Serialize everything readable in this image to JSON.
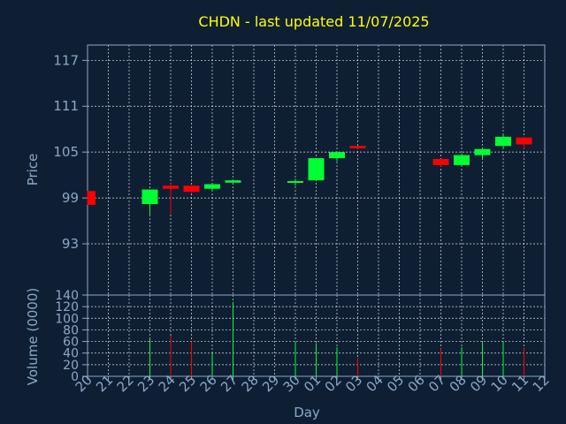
{
  "chart_data": {
    "type": "candlestick",
    "title": "CHDN - last updated 11/07/2025",
    "xlabel": "Day",
    "ylabel_price": "Price",
    "ylabel_volume": "Volume (0000)",
    "price_ticks": [
      93,
      99,
      105,
      111,
      117
    ],
    "price_ylim": [
      86.3,
      119.0
    ],
    "volume_ticks": [
      0,
      20,
      40,
      60,
      80,
      100,
      120,
      140
    ],
    "volume_ylim": [
      0,
      140
    ],
    "x_tick_labels": [
      "20",
      "21",
      "22",
      "23",
      "24",
      "25",
      "26",
      "27",
      "28",
      "29",
      "30",
      "01",
      "02",
      "03",
      "04",
      "05",
      "06",
      "07",
      "08",
      "09",
      "10",
      "11",
      "12"
    ],
    "grid": true,
    "up_color": "#00ff33",
    "down_color": "#ff0000",
    "candles": [
      {
        "x": "20",
        "open": 99.9,
        "high": 99.9,
        "low": 98.1,
        "close": 98.1,
        "volume": 0
      },
      {
        "x": "23",
        "open": 98.2,
        "high": 100.1,
        "low": 96.7,
        "close": 100.1,
        "volume": 65
      },
      {
        "x": "24",
        "open": 100.6,
        "high": 100.9,
        "low": 96.9,
        "close": 100.2,
        "volume": 70
      },
      {
        "x": "25",
        "open": 100.6,
        "high": 100.6,
        "low": 99.7,
        "close": 99.8,
        "volume": 60
      },
      {
        "x": "26",
        "open": 100.2,
        "high": 100.9,
        "low": 99.9,
        "close": 100.8,
        "volume": 40
      },
      {
        "x": "27",
        "open": 101.0,
        "high": 101.4,
        "low": 101.0,
        "close": 101.3,
        "volume": 128
      },
      {
        "x": "30",
        "open": 101.1,
        "high": 101.5,
        "low": 100.6,
        "close": 101.2,
        "volume": 60
      },
      {
        "x": "01",
        "open": 101.3,
        "high": 104.2,
        "low": 101.2,
        "close": 104.2,
        "volume": 57
      },
      {
        "x": "02",
        "open": 104.2,
        "high": 105.1,
        "low": 103.8,
        "close": 105.0,
        "volume": 50
      },
      {
        "x": "03",
        "open": 105.8,
        "high": 105.8,
        "low": 105.4,
        "close": 105.5,
        "volume": 32
      },
      {
        "x": "07",
        "open": 104.1,
        "high": 104.1,
        "low": 103.1,
        "close": 103.3,
        "volume": 48
      },
      {
        "x": "08",
        "open": 103.3,
        "high": 104.8,
        "low": 103.2,
        "close": 104.6,
        "volume": 50
      },
      {
        "x": "09",
        "open": 104.6,
        "high": 105.6,
        "low": 104.2,
        "close": 105.4,
        "volume": 58
      },
      {
        "x": "10",
        "open": 105.8,
        "high": 107.4,
        "low": 105.4,
        "close": 107.0,
        "volume": 60
      },
      {
        "x": "11",
        "open": 106.9,
        "high": 107.0,
        "low": 105.4,
        "close": 106.0,
        "volume": 48
      }
    ]
  }
}
